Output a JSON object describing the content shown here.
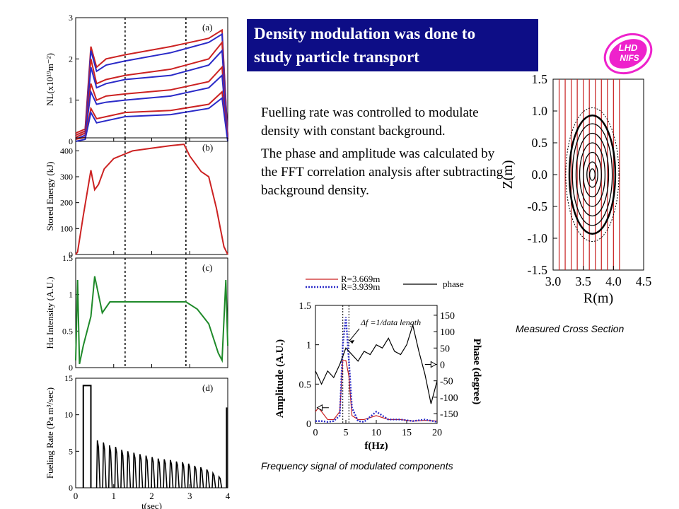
{
  "slide": {
    "title_line1": "Density modulation was done to",
    "title_line2": "study particle transport",
    "paragraph1": "Fuelling rate was controlled to modulate density with constant background.",
    "paragraph2": "The phase and amplitude was calculated by the FFT correlation analysis after subtracting background density.",
    "caption_cross_section": "Measured Cross Section",
    "caption_frequency": "Frequency signal of modulated components",
    "colors": {
      "title_bg": "#0d0d86",
      "red": "#cc2222",
      "blue": "#2a2ac8",
      "green": "#1f8a2a",
      "logo": "#ee22cc"
    }
  },
  "logo": {
    "text_line1": "LHD",
    "text_line2": "NIFS",
    "icon": "lhd-nifs-logo"
  },
  "chart_data": [
    {
      "id": "panel-a",
      "type": "line",
      "panel_label": "(a)",
      "ylabel": "NL(x10¹⁹m⁻²)",
      "xlim": [
        0,
        4
      ],
      "ylim": [
        0,
        3
      ],
      "yticks": [
        "0",
        "1",
        "2",
        "3"
      ],
      "markers_x": [
        1.3,
        2.9
      ],
      "series": [
        {
          "color": "red",
          "x": [
            0,
            0.25,
            0.4,
            0.55,
            0.8,
            1.3,
            2.5,
            3.5,
            3.85,
            4.0
          ],
          "y": [
            0.2,
            0.3,
            2.3,
            1.8,
            2.0,
            2.1,
            2.3,
            2.5,
            2.7,
            0.1
          ]
        },
        {
          "color": "blue",
          "x": [
            0,
            0.25,
            0.4,
            0.55,
            0.8,
            1.3,
            2.5,
            3.5,
            3.85,
            4.0
          ],
          "y": [
            0.15,
            0.25,
            2.2,
            1.7,
            1.85,
            1.95,
            2.15,
            2.4,
            2.6,
            0.1
          ]
        },
        {
          "color": "red",
          "x": [
            0,
            0.25,
            0.4,
            0.55,
            0.8,
            1.3,
            2.5,
            3.5,
            3.85,
            4.0
          ],
          "y": [
            0.15,
            0.25,
            2.0,
            1.4,
            1.5,
            1.6,
            1.75,
            2.0,
            2.4,
            0.1
          ]
        },
        {
          "color": "blue",
          "x": [
            0,
            0.25,
            0.4,
            0.55,
            0.8,
            1.3,
            2.5,
            3.5,
            3.85,
            4.0
          ],
          "y": [
            0.1,
            0.2,
            1.8,
            1.3,
            1.4,
            1.5,
            1.6,
            1.85,
            2.2,
            0.1
          ]
        },
        {
          "color": "red",
          "x": [
            0,
            0.25,
            0.4,
            0.55,
            0.8,
            1.3,
            2.5,
            3.5,
            3.85,
            4.0
          ],
          "y": [
            0.1,
            0.2,
            1.4,
            1.0,
            1.1,
            1.15,
            1.25,
            1.45,
            1.8,
            0.1
          ]
        },
        {
          "color": "blue",
          "x": [
            0,
            0.25,
            0.4,
            0.55,
            0.8,
            1.3,
            2.5,
            3.5,
            3.85,
            4.0
          ],
          "y": [
            0.05,
            0.15,
            1.2,
            0.9,
            0.95,
            1.0,
            1.1,
            1.3,
            1.6,
            0.05
          ]
        },
        {
          "color": "red",
          "x": [
            0,
            0.25,
            0.4,
            0.55,
            0.8,
            1.3,
            2.5,
            3.5,
            3.85,
            4.0
          ],
          "y": [
            0.05,
            0.1,
            0.8,
            0.55,
            0.6,
            0.7,
            0.75,
            0.9,
            1.2,
            0.05
          ]
        },
        {
          "color": "blue",
          "x": [
            0,
            0.25,
            0.4,
            0.55,
            0.8,
            1.3,
            2.5,
            3.5,
            3.85,
            4.0
          ],
          "y": [
            0.0,
            0.05,
            0.7,
            0.45,
            0.5,
            0.6,
            0.65,
            0.8,
            1.05,
            0.0
          ]
        }
      ]
    },
    {
      "id": "panel-b",
      "type": "line",
      "panel_label": "(b)",
      "ylabel": "Stored Energy (kJ)",
      "xlim": [
        0,
        4
      ],
      "ylim": [
        0,
        450
      ],
      "yticks": [
        "0",
        "100",
        "200",
        "300",
        "400"
      ],
      "markers_x": [
        1.3,
        2.9
      ],
      "series": [
        {
          "color": "red",
          "x": [
            0.0,
            0.05,
            0.2,
            0.4,
            0.5,
            0.6,
            0.75,
            1.0,
            1.5,
            2.0,
            2.5,
            2.85,
            3.0,
            3.3,
            3.5,
            3.7,
            3.9,
            4.0
          ],
          "y": [
            0,
            10,
            150,
            325,
            250,
            270,
            330,
            370,
            400,
            410,
            420,
            425,
            380,
            320,
            300,
            180,
            30,
            0
          ]
        }
      ]
    },
    {
      "id": "panel-c",
      "type": "line",
      "panel_label": "(c)",
      "ylabel": "Hα Intensity (A.U.)",
      "xlim": [
        0,
        4
      ],
      "ylim": [
        0,
        1.5
      ],
      "yticks": [
        "0",
        "0.5",
        "1",
        "1.5"
      ],
      "markers_x": [
        1.3,
        2.9
      ],
      "series": [
        {
          "color": "green",
          "x": [
            0.0,
            0.05,
            0.1,
            0.2,
            0.4,
            0.5,
            0.7,
            0.9,
            1.3,
            2.0,
            2.9,
            3.2,
            3.5,
            3.75,
            3.85,
            3.95,
            4.0
          ],
          "y": [
            0.1,
            1.2,
            0.05,
            0.3,
            0.7,
            1.25,
            0.75,
            0.9,
            0.9,
            0.9,
            0.9,
            0.8,
            0.6,
            0.2,
            0.1,
            1.2,
            0.3
          ]
        }
      ]
    },
    {
      "id": "panel-d",
      "type": "bar",
      "panel_label": "(d)",
      "ylabel": "Fueling Rate (Pa m³/sec)",
      "xlabel": "t(sec)",
      "xlim": [
        0,
        4
      ],
      "ylim": [
        0,
        15
      ],
      "yticks": [
        "0",
        "5",
        "10",
        "15"
      ],
      "xticks": [
        "0",
        "1",
        "2",
        "3",
        "4"
      ],
      "step": {
        "x0": 0.2,
        "x1": 0.4,
        "y": 14
      },
      "pulses": {
        "x": [
          0.6,
          0.76,
          0.92,
          1.08,
          1.24,
          1.4,
          1.56,
          1.72,
          1.88,
          2.04,
          2.2,
          2.36,
          2.52,
          2.68,
          2.84,
          3.0,
          3.16,
          3.32,
          3.48,
          3.64,
          3.8
        ],
        "y": [
          6.5,
          6.2,
          5.8,
          5.6,
          5.2,
          5.0,
          4.8,
          4.6,
          4.4,
          4.2,
          4.0,
          3.9,
          3.8,
          3.6,
          3.5,
          3.3,
          3.0,
          2.8,
          2.5,
          2.0,
          1.5
        ]
      },
      "end_spike": {
        "x": 3.97,
        "y": 11
      }
    },
    {
      "id": "frequency-plot",
      "type": "line",
      "xlabel": "f(Hz)",
      "ylabel": "Amplitude (A.U.)",
      "y2label": "Phase (degree)",
      "xlim": [
        0,
        20
      ],
      "ylim": [
        0,
        1.5
      ],
      "y2lim": [
        -180,
        180
      ],
      "xticks": [
        "0",
        "5",
        "10",
        "15",
        "20"
      ],
      "yticks": [
        "0",
        "0.5",
        "1",
        "1.5"
      ],
      "y2ticks": [
        "-150",
        "-100",
        "-50",
        "0",
        "50",
        "100",
        "150"
      ],
      "legend": [
        "R=3.669m",
        "R=3.939m",
        "phase"
      ],
      "annotation": "Δf =1/data length",
      "series": [
        {
          "name": "R=3.669m",
          "color": "red",
          "x": [
            0,
            0.5,
            1,
            1.5,
            2,
            3,
            4,
            4.5,
            5,
            5.5,
            6,
            7,
            8,
            10,
            12,
            14,
            16,
            18,
            20
          ],
          "y": [
            0.15,
            0.2,
            0.15,
            0.1,
            0.05,
            0.05,
            0.15,
            0.8,
            0.8,
            0.6,
            0.1,
            0.05,
            0.05,
            0.1,
            0.05,
            0.05,
            0.03,
            0.04,
            0.03
          ]
        },
        {
          "name": "R=3.939m",
          "color": "blue",
          "x": [
            0,
            1,
            2,
            3,
            4,
            4.5,
            5,
            5.5,
            6,
            7,
            8,
            10,
            11,
            12,
            14,
            16,
            18,
            20
          ],
          "y": [
            0.03,
            0.03,
            0.02,
            0.03,
            0.1,
            1.0,
            1.35,
            0.8,
            0.2,
            0.03,
            0.02,
            0.15,
            0.1,
            0.05,
            0.05,
            0.03,
            0.05,
            0.02
          ]
        },
        {
          "name": "phase",
          "color": "black",
          "axis": "right",
          "x": [
            0,
            1,
            2,
            3,
            4,
            5,
            6,
            7,
            8,
            9,
            10,
            11,
            12,
            13,
            14,
            15,
            16,
            17,
            18,
            19,
            20
          ],
          "y": [
            -20,
            -60,
            -20,
            -40,
            0,
            50,
            30,
            10,
            40,
            30,
            60,
            50,
            80,
            40,
            30,
            60,
            120,
            40,
            -30,
            -120,
            -50
          ]
        }
      ]
    },
    {
      "id": "cross-section",
      "type": "line",
      "xlabel": "R(m)",
      "ylabel": "Z(m)",
      "xlim": [
        3.0,
        4.5
      ],
      "ylim": [
        -1.5,
        1.5
      ],
      "xticks": [
        "3.0",
        "3.5",
        "4.0",
        "4.5"
      ],
      "yticks": [
        "1.5",
        "1.0",
        "0.5",
        "0.0",
        "-0.5",
        "-1.0",
        "-1.5"
      ],
      "center": [
        3.65,
        0.0
      ],
      "flux_surfaces": [
        {
          "half_width": 0.38,
          "half_height": 0.93
        },
        {
          "half_width": 0.33,
          "half_height": 0.8
        },
        {
          "half_width": 0.27,
          "half_height": 0.65
        },
        {
          "half_width": 0.21,
          "half_height": 0.5
        },
        {
          "half_width": 0.15,
          "half_height": 0.35
        },
        {
          "half_width": 0.09,
          "half_height": 0.2
        },
        {
          "half_width": 0.045,
          "half_height": 0.09
        }
      ],
      "outer_dashed": {
        "half_width": 0.44,
        "half_height": 1.05
      },
      "chord_lines_R": [
        3.1,
        3.2,
        3.3,
        3.4,
        3.5,
        3.6,
        3.7,
        3.8,
        3.9,
        4.0,
        4.1
      ]
    }
  ]
}
